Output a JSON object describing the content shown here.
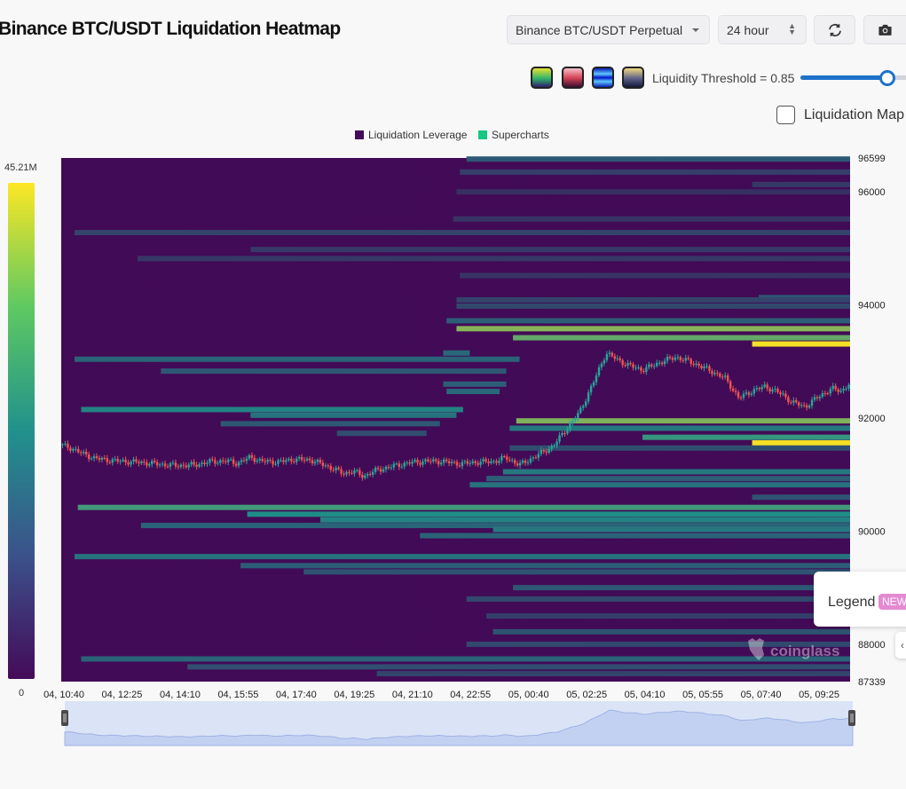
{
  "header": {
    "title": "Binance BTC/USDT Liquidation Heatmap",
    "exchange_select": "Binance BTC/USDT Perpetual",
    "range_select": "24 hour"
  },
  "controls": {
    "threshold_label": "Liquidity Threshold = 0.85",
    "threshold_value": 0.85,
    "checkbox_label": "Liquidation Map",
    "checkbox_checked": false,
    "palettes": [
      "viridis",
      "pink-red",
      "blue",
      "gold-navy"
    ]
  },
  "legend_button": {
    "label": "Legend",
    "badge": "NEW"
  },
  "watermark": "coinglass",
  "colors": {
    "heat_low": "#440b59",
    "heat_mid": "#21918c",
    "heat_high": "#fde725",
    "candle_up": "#26a69a",
    "candle_down": "#ef5350",
    "accent": "#1e73c8"
  },
  "chart_data": {
    "type": "heatmap",
    "legend": [
      "Liquidation Leverage",
      "Supercharts"
    ],
    "legend_colors": [
      "#440b59",
      "#17c77f"
    ],
    "colorbar": {
      "max_label": "45.21M",
      "min_label": "0",
      "max": 45210000,
      "min": 0
    },
    "x_ticks": [
      "04, 10:40",
      "04, 12:25",
      "04, 14:10",
      "04, 15:55",
      "04, 17:40",
      "04, 19:25",
      "04, 21:10",
      "04, 22:55",
      "05, 00:40",
      "05, 02:25",
      "05, 04:10",
      "05, 05:55",
      "05, 07:40",
      "05, 09:25"
    ],
    "y_ticks": [
      96599,
      96000,
      94000,
      92000,
      90000,
      88000,
      87339
    ],
    "ylim": [
      87339,
      96599
    ],
    "x_range_hours": [
      0,
      23.75
    ],
    "bands": [
      {
        "p": 96580,
        "s": 12.2,
        "e": 23.75,
        "v": 0.3
      },
      {
        "p": 96350,
        "s": 12.0,
        "e": 23.75,
        "v": 0.2
      },
      {
        "p": 96130,
        "s": 20.8,
        "e": 23.75,
        "v": 0.18
      },
      {
        "p": 96000,
        "s": 11.9,
        "e": 23.75,
        "v": 0.14
      },
      {
        "p": 95520,
        "s": 11.8,
        "e": 23.75,
        "v": 0.16
      },
      {
        "p": 95280,
        "s": 0.4,
        "e": 23.75,
        "v": 0.22
      },
      {
        "p": 94980,
        "s": 5.7,
        "e": 23.75,
        "v": 0.18
      },
      {
        "p": 94820,
        "s": 2.3,
        "e": 23.75,
        "v": 0.17
      },
      {
        "p": 94520,
        "s": 12.0,
        "e": 23.75,
        "v": 0.16
      },
      {
        "p": 94130,
        "s": 21.0,
        "e": 23.75,
        "v": 0.3
      },
      {
        "p": 94090,
        "s": 11.9,
        "e": 23.75,
        "v": 0.22
      },
      {
        "p": 93980,
        "s": 11.9,
        "e": 23.75,
        "v": 0.24
      },
      {
        "p": 93720,
        "s": 11.6,
        "e": 23.75,
        "v": 0.32
      },
      {
        "p": 93580,
        "s": 11.9,
        "e": 23.75,
        "v": 0.74
      },
      {
        "p": 93420,
        "s": 13.6,
        "e": 23.75,
        "v": 0.66
      },
      {
        "p": 93310,
        "s": 20.8,
        "e": 23.75,
        "v": 1.0
      },
      {
        "p": 93150,
        "s": 11.5,
        "e": 12.3,
        "v": 0.36
      },
      {
        "p": 93040,
        "s": 0.4,
        "e": 13.8,
        "v": 0.34
      },
      {
        "p": 92830,
        "s": 3.0,
        "e": 13.4,
        "v": 0.3
      },
      {
        "p": 92600,
        "s": 11.5,
        "e": 13.4,
        "v": 0.32
      },
      {
        "p": 92470,
        "s": 11.6,
        "e": 13.2,
        "v": 0.36
      },
      {
        "p": 92150,
        "s": 0.6,
        "e": 12.1,
        "v": 0.46
      },
      {
        "p": 92050,
        "s": 5.7,
        "e": 11.9,
        "v": 0.4
      },
      {
        "p": 91900,
        "s": 4.8,
        "e": 11.4,
        "v": 0.3
      },
      {
        "p": 91730,
        "s": 8.3,
        "e": 11.0,
        "v": 0.26
      },
      {
        "p": 91950,
        "s": 13.7,
        "e": 23.75,
        "v": 0.72
      },
      {
        "p": 91820,
        "s": 13.5,
        "e": 23.75,
        "v": 0.42
      },
      {
        "p": 91660,
        "s": 17.5,
        "e": 23.75,
        "v": 0.55
      },
      {
        "p": 91560,
        "s": 20.8,
        "e": 23.75,
        "v": 1.0
      },
      {
        "p": 91470,
        "s": 13.5,
        "e": 23.75,
        "v": 0.26
      },
      {
        "p": 91050,
        "s": 13.3,
        "e": 23.75,
        "v": 0.42
      },
      {
        "p": 90930,
        "s": 12.8,
        "e": 23.75,
        "v": 0.32
      },
      {
        "p": 90820,
        "s": 12.3,
        "e": 23.75,
        "v": 0.4
      },
      {
        "p": 90600,
        "s": 20.8,
        "e": 23.75,
        "v": 0.28
      },
      {
        "p": 90420,
        "s": 0.5,
        "e": 23.75,
        "v": 0.58
      },
      {
        "p": 90300,
        "s": 5.6,
        "e": 23.75,
        "v": 0.5
      },
      {
        "p": 90200,
        "s": 7.8,
        "e": 23.75,
        "v": 0.46
      },
      {
        "p": 90100,
        "s": 2.4,
        "e": 23.75,
        "v": 0.34
      },
      {
        "p": 90030,
        "s": 13.0,
        "e": 23.75,
        "v": 0.42
      },
      {
        "p": 89920,
        "s": 10.8,
        "e": 23.75,
        "v": 0.34
      },
      {
        "p": 89550,
        "s": 0.4,
        "e": 23.75,
        "v": 0.4
      },
      {
        "p": 89390,
        "s": 5.4,
        "e": 23.75,
        "v": 0.32
      },
      {
        "p": 89280,
        "s": 7.3,
        "e": 23.75,
        "v": 0.28
      },
      {
        "p": 89000,
        "s": 13.6,
        "e": 23.75,
        "v": 0.3
      },
      {
        "p": 88800,
        "s": 12.2,
        "e": 23.75,
        "v": 0.24
      },
      {
        "p": 88500,
        "s": 12.8,
        "e": 23.75,
        "v": 0.2
      },
      {
        "p": 88220,
        "s": 13.0,
        "e": 23.75,
        "v": 0.28
      },
      {
        "p": 88000,
        "s": 12.2,
        "e": 23.75,
        "v": 0.24
      },
      {
        "p": 87740,
        "s": 0.6,
        "e": 23.75,
        "v": 0.34
      },
      {
        "p": 87600,
        "s": 3.8,
        "e": 23.75,
        "v": 0.26
      },
      {
        "p": 87480,
        "s": 9.5,
        "e": 23.75,
        "v": 0.22
      }
    ],
    "price_path": [
      [
        0.0,
        91520
      ],
      [
        0.3,
        91470
      ],
      [
        0.6,
        91380
      ],
      [
        1.0,
        91290
      ],
      [
        1.5,
        91250
      ],
      [
        2.0,
        91230
      ],
      [
        2.5,
        91210
      ],
      [
        3.0,
        91180
      ],
      [
        3.5,
        91160
      ],
      [
        4.0,
        91170
      ],
      [
        4.5,
        91230
      ],
      [
        5.0,
        91240
      ],
      [
        5.3,
        91200
      ],
      [
        5.7,
        91310
      ],
      [
        6.0,
        91240
      ],
      [
        6.5,
        91220
      ],
      [
        7.0,
        91270
      ],
      [
        7.5,
        91260
      ],
      [
        8.0,
        91150
      ],
      [
        8.5,
        91020
      ],
      [
        8.8,
        91060
      ],
      [
        9.1,
        90970
      ],
      [
        9.5,
        91080
      ],
      [
        10.0,
        91150
      ],
      [
        10.5,
        91210
      ],
      [
        11.0,
        91240
      ],
      [
        11.5,
        91230
      ],
      [
        12.0,
        91190
      ],
      [
        12.5,
        91220
      ],
      [
        13.0,
        91230
      ],
      [
        13.4,
        91300
      ],
      [
        13.8,
        91170
      ],
      [
        14.3,
        91330
      ],
      [
        14.8,
        91500
      ],
      [
        15.2,
        91800
      ],
      [
        15.6,
        92100
      ],
      [
        16.0,
        92600
      ],
      [
        16.4,
        93150
      ],
      [
        16.7,
        93050
      ],
      [
        17.0,
        92950
      ],
      [
        17.5,
        92850
      ],
      [
        18.0,
        92980
      ],
      [
        18.5,
        93080
      ],
      [
        19.0,
        92980
      ],
      [
        19.5,
        92850
      ],
      [
        20.0,
        92700
      ],
      [
        20.4,
        92350
      ],
      [
        20.8,
        92480
      ],
      [
        21.2,
        92560
      ],
      [
        21.7,
        92420
      ],
      [
        22.0,
        92280
      ],
      [
        22.4,
        92200
      ],
      [
        22.8,
        92380
      ],
      [
        23.2,
        92520
      ],
      [
        23.5,
        92480
      ],
      [
        23.75,
        92620
      ]
    ]
  }
}
